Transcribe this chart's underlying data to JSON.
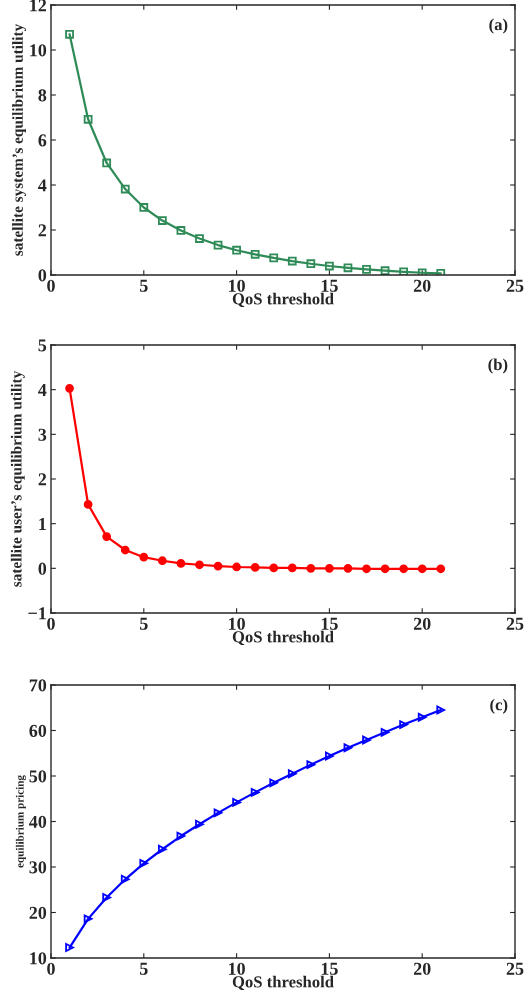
{
  "chart_data": [
    {
      "type": "line",
      "xlabel": "QoS threshold",
      "ylabel": "satellite system’s equilibrium utility",
      "annotations": [
        "(a)"
      ],
      "x": [
        1,
        2,
        3,
        4,
        5,
        6,
        7,
        8,
        9,
        10,
        11,
        12,
        13,
        14,
        15,
        16,
        17,
        18,
        19,
        20,
        21
      ],
      "xlim": [
        0,
        25
      ],
      "xticks": [
        0,
        5,
        10,
        15,
        20,
        25
      ],
      "ylim": [
        0,
        12
      ],
      "yticks": [
        0,
        2,
        4,
        6,
        8,
        10,
        12
      ],
      "grid": false,
      "marker": "square",
      "line_style": "solid",
      "series": [
        {
          "color": "#2e8b57",
          "values": [
            10.7,
            6.92,
            4.98,
            3.82,
            3.0,
            2.42,
            1.98,
            1.62,
            1.33,
            1.1,
            0.92,
            0.76,
            0.62,
            0.5,
            0.4,
            0.32,
            0.25,
            0.19,
            0.14,
            0.1,
            0.07
          ]
        }
      ]
    },
    {
      "type": "line",
      "xlabel": "QoS threshold",
      "ylabel": "satellite user’s equilibrium utility",
      "annotations": [
        "(b)"
      ],
      "x": [
        1,
        2,
        3,
        4,
        5,
        6,
        7,
        8,
        9,
        10,
        11,
        12,
        13,
        14,
        15,
        16,
        17,
        18,
        19,
        20,
        21
      ],
      "xlim": [
        0,
        25
      ],
      "xticks": [
        0,
        5,
        10,
        15,
        20,
        25
      ],
      "ylim": [
        -1,
        5
      ],
      "yticks": [
        {
          "value": -1,
          "label": "−1"
        },
        0,
        1,
        2,
        3,
        4,
        5
      ],
      "grid": false,
      "marker": "circle",
      "line_style": "solid",
      "series": [
        {
          "color": "#ff0000",
          "values": [
            4.03,
            1.43,
            0.71,
            0.41,
            0.25,
            0.17,
            0.11,
            0.08,
            0.05,
            0.03,
            0.02,
            0.01,
            0.01,
            0,
            0,
            0,
            -0.01,
            -0.01,
            -0.01,
            -0.01,
            -0.01
          ]
        }
      ]
    },
    {
      "type": "line",
      "xlabel": "QoS threshold",
      "ylabel": "equilibrium pricing",
      "annotations": [
        "(c)"
      ],
      "x": [
        1,
        2,
        3,
        4,
        5,
        6,
        7,
        8,
        9,
        10,
        11,
        12,
        13,
        14,
        15,
        16,
        17,
        18,
        19,
        20,
        21
      ],
      "xlim": [
        0,
        25
      ],
      "xticks": [
        0,
        5,
        10,
        15,
        20,
        25
      ],
      "ylim": [
        10,
        70
      ],
      "yticks": [
        10,
        20,
        30,
        40,
        50,
        60,
        70
      ],
      "grid": false,
      "marker": "triangle",
      "line_style": "solid",
      "series": [
        {
          "color": "#0000ff",
          "values": [
            12.3,
            18.6,
            23.3,
            27.3,
            30.8,
            33.9,
            36.8,
            39.4,
            41.9,
            44.2,
            46.4,
            48.5,
            50.5,
            52.5,
            54.4,
            56.2,
            57.9,
            59.6,
            61.3,
            62.9,
            64.5
          ]
        }
      ]
    }
  ]
}
